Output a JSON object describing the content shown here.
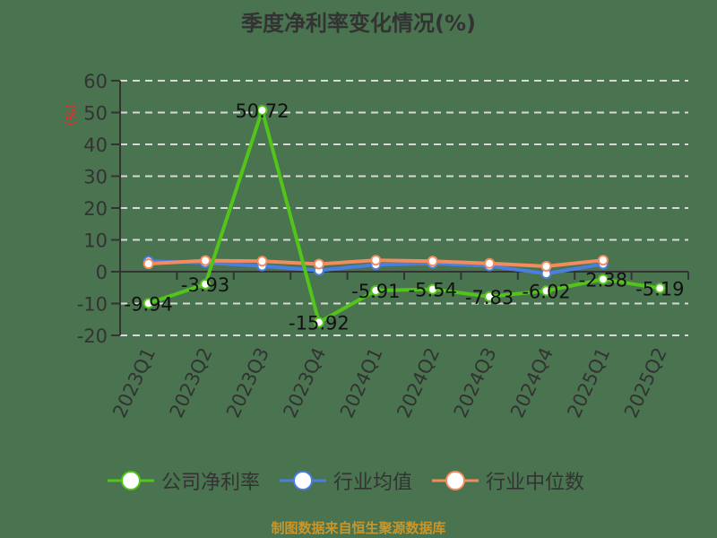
{
  "chart_data": {
    "type": "line",
    "title": "季度净利率变化情况(%)",
    "xlabel": "",
    "ylabel": "(%)",
    "ylim": [
      -20,
      60
    ],
    "yticks": [
      60,
      50,
      40,
      30,
      20,
      10,
      0,
      -10,
      -20
    ],
    "grid": "horizontal dashed",
    "legend_position": "bottom",
    "categories": [
      "2023Q1",
      "2023Q2",
      "2023Q3",
      "2023Q4",
      "2024Q1",
      "2024Q2",
      "2024Q3",
      "2024Q4",
      "2025Q1",
      "2025Q2"
    ],
    "series": [
      {
        "name": "公司净利率",
        "color": "#52c41a",
        "values": [
          -9.94,
          -3.93,
          50.72,
          -15.92,
          -5.91,
          -5.54,
          -7.83,
          -6.02,
          -2.38,
          -5.19
        ],
        "labels": [
          "-9.94",
          "-3.93",
          "50.72",
          "-15.92",
          "-5.91",
          "-5.54",
          "-7.83",
          "-6.02",
          "-2.38",
          "-5.19"
        ]
      },
      {
        "name": "行业均值",
        "color": "#4a7fe0",
        "values": [
          3.3,
          2.8,
          1.8,
          0.4,
          2.2,
          2.6,
          1.8,
          -0.6,
          2.4,
          null
        ]
      },
      {
        "name": "行业中位数",
        "color": "#f28c5e",
        "values": [
          2.5,
          3.5,
          3.3,
          2.4,
          3.6,
          3.3,
          2.6,
          1.7,
          3.6,
          null
        ]
      }
    ]
  },
  "title": "季度净利率变化情况(%)",
  "y_axis_unit": "(%)",
  "legend": [
    {
      "label": "公司净利率",
      "color": "#52c41a"
    },
    {
      "label": "行业均值",
      "color": "#4a7fe0"
    },
    {
      "label": "行业中位数",
      "color": "#f28c5e"
    }
  ],
  "footer": "制图数据来自恒生聚源数据库"
}
